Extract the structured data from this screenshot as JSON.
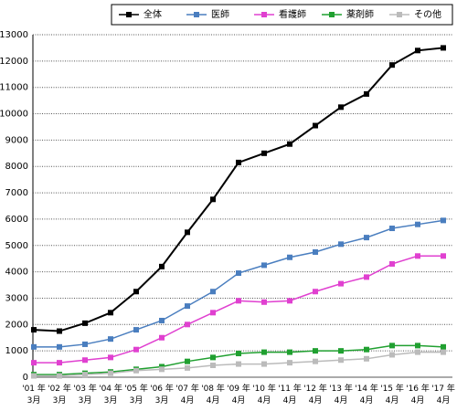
{
  "chart_data": {
    "type": "line",
    "categories": [
      "'01 年\n3月",
      "'02 年\n3月",
      "'03 年\n3月",
      "'04 年\n3月",
      "'05 年\n3月",
      "'06 年\n3月",
      "'07 年\n4月",
      "'08 年\n4月",
      "'09 年\n4月",
      "'10 年\n4月",
      "'11 年\n4月",
      "'12 年\n4月",
      "'13 年\n4月",
      "'14 年\n4月",
      "'15 年\n4月",
      "'16 年\n4月",
      "'17 年\n4月"
    ],
    "series": [
      {
        "name": "全体",
        "color": "#000000",
        "values": [
          1800,
          1750,
          2050,
          2450,
          3250,
          4200,
          5500,
          6750,
          8150,
          8500,
          8850,
          9550,
          10250,
          10750,
          11850,
          12400,
          12500
        ]
      },
      {
        "name": "医師",
        "color": "#4a7ebf",
        "values": [
          1150,
          1150,
          1250,
          1450,
          1800,
          2150,
          2700,
          3250,
          3950,
          4250,
          4550,
          4750,
          5050,
          5300,
          5650,
          5800,
          5950
        ]
      },
      {
        "name": "看護師",
        "color": "#e040d0",
        "values": [
          550,
          550,
          650,
          750,
          1050,
          1500,
          2000,
          2450,
          2900,
          2850,
          2900,
          3250,
          3550,
          3800,
          4300,
          4600,
          4600
        ]
      },
      {
        "name": "薬剤師",
        "color": "#20a030",
        "values": [
          100,
          100,
          150,
          200,
          300,
          400,
          600,
          750,
          900,
          950,
          950,
          1000,
          1000,
          1050,
          1200,
          1200,
          1150
        ]
      },
      {
        "name": "その他",
        "color": "#bbbbbb",
        "values": [
          50,
          50,
          100,
          150,
          250,
          300,
          350,
          450,
          500,
          500,
          550,
          600,
          650,
          700,
          850,
          950,
          950
        ]
      }
    ],
    "ylim": [
      0,
      13000
    ],
    "yticks": [
      0,
      1000,
      2000,
      3000,
      4000,
      5000,
      6000,
      7000,
      8000,
      9000,
      10000,
      11000,
      12000,
      13000
    ],
    "grid": true
  }
}
